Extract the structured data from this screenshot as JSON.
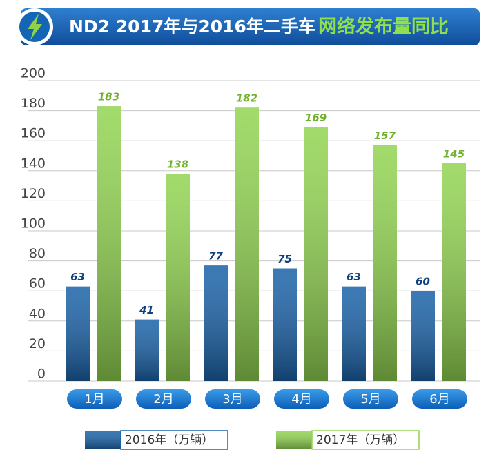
{
  "chart_data": {
    "type": "bar",
    "title": "ND2 2017年与2016年二手车",
    "title_highlight": "网络发布量同比",
    "categories": [
      "1月",
      "2月",
      "3月",
      "4月",
      "5月",
      "6月"
    ],
    "series": [
      {
        "name": "2016年（万辆）",
        "color": "#1a62a8",
        "values": [
          63,
          41,
          77,
          75,
          63,
          60
        ]
      },
      {
        "name": "2017年（万辆）",
        "color": "#92d451",
        "values": [
          183,
          138,
          182,
          169,
          157,
          145
        ]
      }
    ],
    "ylim": [
      0,
      200
    ],
    "yticks": [
      0,
      20,
      40,
      60,
      80,
      100,
      120,
      140,
      160,
      180,
      200
    ],
    "grid": true
  }
}
